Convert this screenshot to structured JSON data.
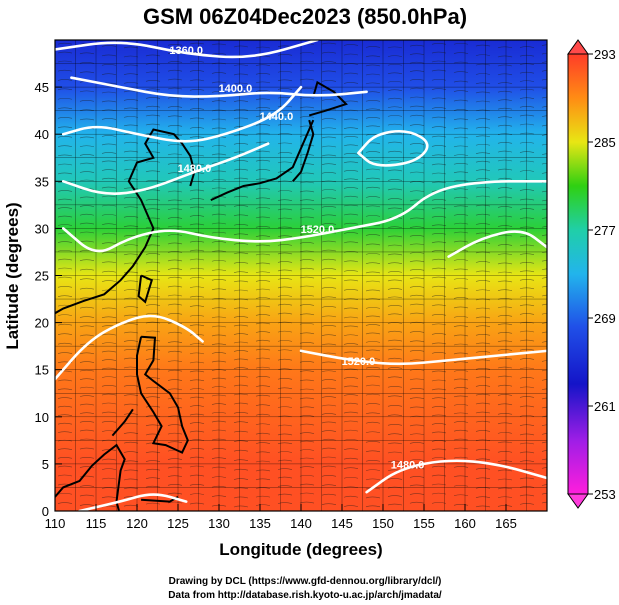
{
  "chart_data": {
    "type": "heatmap",
    "title": "GSM 06Z04Dec2023 (850.0hPa)",
    "xlabel": "Longitude (degrees)",
    "ylabel": "Latitude  (degrees)",
    "xlim": [
      110,
      170
    ],
    "ylim": [
      0,
      50
    ],
    "x_ticks": [
      "110",
      "115",
      "120",
      "125",
      "130",
      "135",
      "140",
      "145",
      "150",
      "155",
      "160",
      "165"
    ],
    "x_tick_values": [
      110,
      115,
      120,
      125,
      130,
      135,
      140,
      145,
      150,
      155,
      160,
      165
    ],
    "y_ticks": [
      "0",
      "5",
      "10",
      "15",
      "20",
      "25",
      "30",
      "35",
      "40",
      "45"
    ],
    "y_tick_values": [
      0,
      5,
      10,
      15,
      20,
      25,
      30,
      35,
      40,
      45
    ],
    "grid": true,
    "colorbar": {
      "labels": [
        "293",
        "285",
        "277",
        "269",
        "261",
        "253"
      ],
      "values": [
        293,
        285,
        277,
        269,
        261,
        253
      ],
      "min": 253,
      "max": 293
    },
    "temperature_profile": [
      {
        "lat": 50,
        "value": 265
      },
      {
        "lat": 45,
        "value": 268
      },
      {
        "lat": 40,
        "value": 273
      },
      {
        "lat": 35,
        "value": 276
      },
      {
        "lat": 30,
        "value": 280
      },
      {
        "lat": 25,
        "value": 285
      },
      {
        "lat": 20,
        "value": 288
      },
      {
        "lat": 15,
        "value": 290
      },
      {
        "lat": 10,
        "value": 291
      },
      {
        "lat": 5,
        "value": 292
      },
      {
        "lat": 0,
        "value": 292
      }
    ],
    "contour_labels": [
      {
        "text": "1360.0",
        "lon": 126,
        "lat": 48.5
      },
      {
        "text": "1400.0",
        "lon": 132,
        "lat": 44.5
      },
      {
        "text": "1440.0",
        "lon": 137,
        "lat": 41.5
      },
      {
        "text": "1480.0",
        "lon": 127,
        "lat": 36
      },
      {
        "text": "1520.0",
        "lon": 142,
        "lat": 29.5
      },
      {
        "text": "1520.0",
        "lon": 147,
        "lat": 15.5
      },
      {
        "text": "1480.0",
        "lon": 153,
        "lat": 4.5
      }
    ],
    "contours": [
      [
        [
          110,
          49
        ],
        [
          118,
          50
        ],
        [
          126,
          48.5
        ],
        [
          134,
          48
        ],
        [
          142,
          50
        ]
      ],
      [
        [
          112,
          46
        ],
        [
          118,
          45
        ],
        [
          124,
          44
        ],
        [
          130,
          44
        ],
        [
          136,
          44.5
        ],
        [
          142,
          44
        ],
        [
          148,
          44.5
        ]
      ],
      [
        [
          111,
          40
        ],
        [
          115,
          41
        ],
        [
          120,
          40
        ],
        [
          126,
          39
        ],
        [
          131,
          40
        ],
        [
          137,
          42
        ],
        [
          140,
          45
        ]
      ],
      [
        [
          111,
          35
        ],
        [
          116,
          33.5
        ],
        [
          121,
          34
        ],
        [
          127,
          36
        ],
        [
          132,
          37.5
        ],
        [
          136,
          39
        ]
      ],
      [
        [
          147,
          38
        ],
        [
          149,
          40
        ],
        [
          153,
          40.5
        ],
        [
          156,
          39
        ],
        [
          154,
          37
        ],
        [
          149,
          36.5
        ],
        [
          147,
          38
        ]
      ],
      [
        [
          111,
          30
        ],
        [
          115,
          27
        ],
        [
          119,
          29
        ],
        [
          124,
          30
        ],
        [
          129,
          29
        ],
        [
          135,
          28.5
        ],
        [
          140,
          29
        ],
        [
          146,
          30
        ],
        [
          152,
          31
        ],
        [
          156,
          34
        ],
        [
          162,
          35
        ],
        [
          170,
          35
        ]
      ],
      [
        [
          158,
          27
        ],
        [
          162,
          29
        ],
        [
          167,
          30
        ],
        [
          170,
          28
        ]
      ],
      [
        [
          110,
          14
        ],
        [
          114,
          18
        ],
        [
          118,
          20
        ],
        [
          122,
          21
        ],
        [
          126,
          19.5
        ],
        [
          128,
          18
        ]
      ],
      [
        [
          140,
          17
        ],
        [
          146,
          16
        ],
        [
          152,
          15.5
        ],
        [
          158,
          16
        ],
        [
          164,
          16.5
        ],
        [
          170,
          17
        ]
      ],
      [
        [
          113,
          0
        ],
        [
          118,
          1
        ],
        [
          122,
          2
        ],
        [
          126,
          1
        ]
      ],
      [
        [
          148,
          2
        ],
        [
          152,
          4.5
        ],
        [
          158,
          5.5
        ],
        [
          164,
          5
        ],
        [
          170,
          3.5
        ]
      ]
    ],
    "coastlines": [
      [
        [
          129,
          33
        ],
        [
          131,
          33.8
        ],
        [
          133,
          34.5
        ],
        [
          135,
          34.8
        ],
        [
          137,
          35.3
        ],
        [
          139,
          36.5
        ],
        [
          140,
          38.5
        ],
        [
          141,
          40.5
        ],
        [
          141.5,
          41.5
        ]
      ],
      [
        [
          139,
          35
        ],
        [
          140,
          36
        ],
        [
          140.8,
          38
        ],
        [
          141.5,
          40
        ],
        [
          141,
          41.5
        ]
      ],
      [
        [
          141,
          42
        ],
        [
          143,
          42.5
        ],
        [
          145.5,
          43.2
        ],
        [
          144,
          44.5
        ],
        [
          142,
          45.5
        ],
        [
          141.5,
          44
        ]
      ],
      [
        [
          126.5,
          34.5
        ],
        [
          127,
          36
        ],
        [
          126.5,
          37.7
        ],
        [
          125.5,
          39
        ],
        [
          124.5,
          40
        ],
        [
          122,
          40.5
        ],
        [
          121,
          39
        ],
        [
          122,
          37.5
        ],
        [
          120,
          37
        ],
        [
          119,
          35
        ],
        [
          120.5,
          33
        ],
        [
          121.5,
          31
        ],
        [
          122,
          30
        ],
        [
          121,
          28
        ],
        [
          119.5,
          26
        ],
        [
          118,
          24.5
        ],
        [
          116,
          23
        ],
        [
          113.5,
          22.3
        ],
        [
          111,
          21.5
        ],
        [
          110,
          21
        ]
      ],
      [
        [
          120.5,
          25
        ],
        [
          121.8,
          24.5
        ],
        [
          121,
          22.2
        ],
        [
          120.2,
          22.8
        ],
        [
          120.5,
          25
        ]
      ],
      [
        [
          120.5,
          18.5
        ],
        [
          122.2,
          18.4
        ],
        [
          122,
          16
        ],
        [
          121,
          14.5
        ],
        [
          122,
          13.8
        ],
        [
          124,
          12.5
        ],
        [
          125,
          11
        ],
        [
          125.5,
          9
        ],
        [
          126.2,
          7.5
        ],
        [
          125.5,
          6.2
        ],
        [
          123.5,
          7
        ],
        [
          122,
          7.2
        ],
        [
          123,
          9
        ],
        [
          122,
          10.5
        ],
        [
          120.5,
          12.5
        ],
        [
          120,
          14.5
        ],
        [
          120,
          16.5
        ],
        [
          120.5,
          18.5
        ]
      ],
      [
        [
          117,
          8
        ],
        [
          118.5,
          9.5
        ],
        [
          119.5,
          10.8
        ]
      ],
      [
        [
          110,
          1.5
        ],
        [
          111,
          2.5
        ],
        [
          113,
          3.2
        ],
        [
          114.5,
          4.8
        ],
        [
          116,
          6
        ],
        [
          117.5,
          7
        ],
        [
          118.5,
          5.5
        ],
        [
          118,
          4.3
        ],
        [
          117.5,
          1
        ],
        [
          117.8,
          0
        ]
      ],
      [
        [
          120.5,
          1.2
        ],
        [
          124,
          1
        ],
        [
          125,
          1.5
        ]
      ]
    ]
  },
  "credits": {
    "line1": "Drawing by DCL (https://www.gfd-dennou.org/library/dcl/)",
    "line2": "Data from http://database.rish.kyoto-u.ac.jp/arch/jmadata/"
  }
}
